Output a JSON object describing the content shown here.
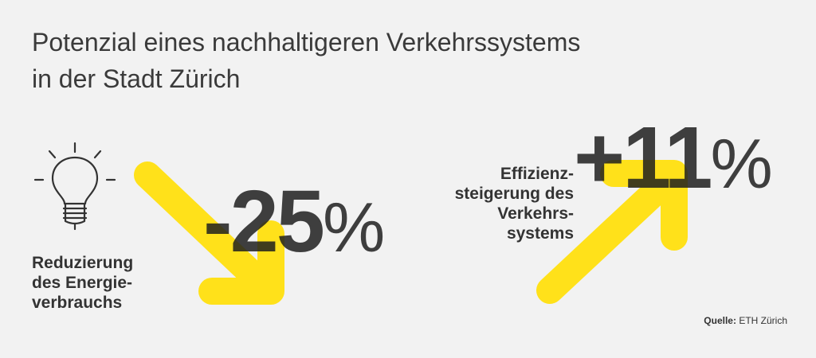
{
  "title": {
    "line1": "Potenzial eines nachhaltigeren Verkehrssystems",
    "line2": "in der Stadt Zürich"
  },
  "left_stat": {
    "icon": "lightbulb-icon",
    "number": "-25",
    "unit": "%",
    "label_lines": [
      "Reduzierung",
      "des Energie-",
      "verbrauchs"
    ]
  },
  "right_stat": {
    "number": "+11",
    "unit": "%",
    "label_lines": [
      "Effizienz-",
      "steigerung des",
      "Verkehrs-",
      "systems"
    ]
  },
  "source": {
    "label": "Quelle:",
    "value": "ETH Zürich"
  },
  "colors": {
    "background": "#f2f2f2",
    "accent_yellow": "#ffe11a",
    "text": "#333333"
  }
}
